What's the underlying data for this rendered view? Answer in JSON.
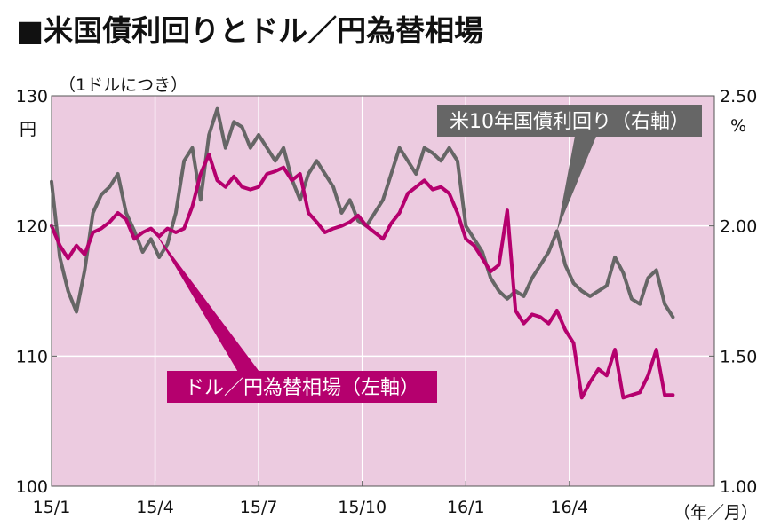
{
  "chart_data": {
    "type": "line",
    "title": "■米国債利回りとドル／円為替相場",
    "unit_note": "（1ドルにつき）",
    "left_axis": {
      "unit": "円",
      "ylim": [
        100,
        130
      ],
      "ticks": [
        {
          "value": 130,
          "label": "130"
        },
        {
          "value": 120,
          "label": "120"
        },
        {
          "value": 110,
          "label": "110"
        },
        {
          "value": 100,
          "label": "100"
        }
      ]
    },
    "right_axis": {
      "unit": "%",
      "ylim": [
        1.0,
        2.5
      ],
      "ticks": [
        {
          "value": 2.5,
          "label": "2.50"
        },
        {
          "value": 2.0,
          "label": "2.00"
        },
        {
          "value": 1.5,
          "label": "1.50"
        },
        {
          "value": 1.0,
          "label": "1.00"
        }
      ]
    },
    "x_axis": {
      "range": [
        2015.0,
        2016.6
      ],
      "ticks": [
        {
          "value": 2015.0,
          "label": "15/1"
        },
        {
          "value": 2015.25,
          "label": "15/4"
        },
        {
          "value": 2015.5,
          "label": "15/7"
        },
        {
          "value": 2015.75,
          "label": "15/10"
        },
        {
          "value": 2016.0,
          "label": "16/1"
        },
        {
          "value": 2016.25,
          "label": "16/4"
        }
      ],
      "unit": "（年／月）"
    },
    "grid": true,
    "colors": {
      "plot_bg": "#eccbe0",
      "grid": "#ffffff",
      "yen": "#b5006e",
      "yield": "#666666"
    },
    "series": [
      {
        "name": "ドル／円為替相場（左軸）",
        "axis": "left",
        "color": "#b5006e",
        "x": [
          2015.0,
          2015.02,
          2015.04,
          2015.06,
          2015.08,
          2015.1,
          2015.12,
          2015.14,
          2015.16,
          2015.18,
          2015.2,
          2015.22,
          2015.24,
          2015.26,
          2015.28,
          2015.3,
          2015.32,
          2015.34,
          2015.36,
          2015.38,
          2015.4,
          2015.42,
          2015.44,
          2015.46,
          2015.48,
          2015.5,
          2015.52,
          2015.54,
          2015.56,
          2015.58,
          2015.6,
          2015.62,
          2015.64,
          2015.66,
          2015.68,
          2015.7,
          2015.72,
          2015.74,
          2015.76,
          2015.78,
          2015.8,
          2015.82,
          2015.84,
          2015.86,
          2015.88,
          2015.9,
          2015.92,
          2015.94,
          2015.96,
          2015.98,
          2016.0,
          2016.02,
          2016.04,
          2016.06,
          2016.08,
          2016.1,
          2016.12,
          2016.14,
          2016.16,
          2016.18,
          2016.2,
          2016.22,
          2016.24,
          2016.26,
          2016.28,
          2016.3,
          2016.32,
          2016.34,
          2016.36,
          2016.38,
          2016.4,
          2016.42,
          2016.44,
          2016.46,
          2016.48,
          2016.5
        ],
        "values": [
          120.0,
          118.5,
          117.5,
          118.5,
          117.8,
          119.5,
          119.8,
          120.3,
          121.0,
          120.5,
          119.0,
          119.5,
          119.8,
          119.2,
          119.8,
          119.5,
          119.8,
          121.5,
          124.0,
          125.5,
          123.5,
          123.0,
          123.8,
          123.0,
          122.8,
          123.0,
          124.0,
          124.2,
          124.5,
          123.5,
          124.0,
          121.0,
          120.3,
          119.5,
          119.8,
          120.0,
          120.3,
          120.8,
          120.0,
          119.5,
          119.0,
          120.2,
          121.0,
          122.5,
          123.0,
          123.5,
          122.8,
          123.0,
          122.5,
          121.0,
          119.0,
          118.5,
          117.5,
          116.5,
          117.0,
          121.2,
          113.5,
          112.5,
          113.2,
          113.0,
          112.5,
          113.5,
          112.0,
          111.0,
          106.8,
          108.0,
          109.0,
          108.5,
          110.5,
          106.8,
          107.0,
          107.2,
          108.5,
          110.5,
          107.0,
          107.0
        ]
      },
      {
        "name": "米10年国債利回り（右軸）",
        "axis": "right",
        "color": "#666666",
        "x": [
          2015.0,
          2015.02,
          2015.04,
          2015.06,
          2015.08,
          2015.1,
          2015.12,
          2015.14,
          2015.16,
          2015.18,
          2015.2,
          2015.22,
          2015.24,
          2015.26,
          2015.28,
          2015.3,
          2015.32,
          2015.34,
          2015.36,
          2015.38,
          2015.4,
          2015.42,
          2015.44,
          2015.46,
          2015.48,
          2015.5,
          2015.52,
          2015.54,
          2015.56,
          2015.58,
          2015.6,
          2015.62,
          2015.64,
          2015.66,
          2015.68,
          2015.7,
          2015.72,
          2015.74,
          2015.76,
          2015.78,
          2015.8,
          2015.82,
          2015.84,
          2015.86,
          2015.88,
          2015.9,
          2015.92,
          2015.94,
          2015.96,
          2015.98,
          2016.0,
          2016.02,
          2016.04,
          2016.06,
          2016.08,
          2016.1,
          2016.12,
          2016.14,
          2016.16,
          2016.18,
          2016.2,
          2016.22,
          2016.24,
          2016.26,
          2016.28,
          2016.3,
          2016.32,
          2016.34,
          2016.36,
          2016.38,
          2016.4,
          2016.42,
          2016.44,
          2016.46,
          2016.48,
          2016.5
        ],
        "values": [
          2.17,
          1.88,
          1.75,
          1.67,
          1.83,
          2.05,
          2.12,
          2.15,
          2.2,
          2.05,
          1.98,
          1.9,
          1.95,
          1.88,
          1.93,
          2.05,
          2.25,
          2.3,
          2.1,
          2.35,
          2.45,
          2.3,
          2.4,
          2.38,
          2.3,
          2.35,
          2.3,
          2.25,
          2.3,
          2.18,
          2.1,
          2.2,
          2.25,
          2.2,
          2.15,
          2.05,
          2.1,
          2.02,
          2.0,
          2.05,
          2.1,
          2.2,
          2.3,
          2.25,
          2.2,
          2.3,
          2.28,
          2.25,
          2.3,
          2.25,
          2.0,
          1.95,
          1.9,
          1.8,
          1.75,
          1.72,
          1.75,
          1.73,
          1.8,
          1.85,
          1.9,
          1.98,
          1.85,
          1.78,
          1.75,
          1.73,
          1.75,
          1.77,
          1.88,
          1.82,
          1.72,
          1.7,
          1.8,
          1.83,
          1.7,
          1.65
        ]
      }
    ],
    "callouts": [
      {
        "series": 1,
        "label": "米10年国債利回り（右軸）",
        "anchor_x": 2016.22,
        "anchor_value": 1.98
      },
      {
        "series": 0,
        "label": "ドル／円為替相場（左軸）",
        "anchor_x": 2015.25,
        "anchor_value": 119.5
      }
    ]
  }
}
